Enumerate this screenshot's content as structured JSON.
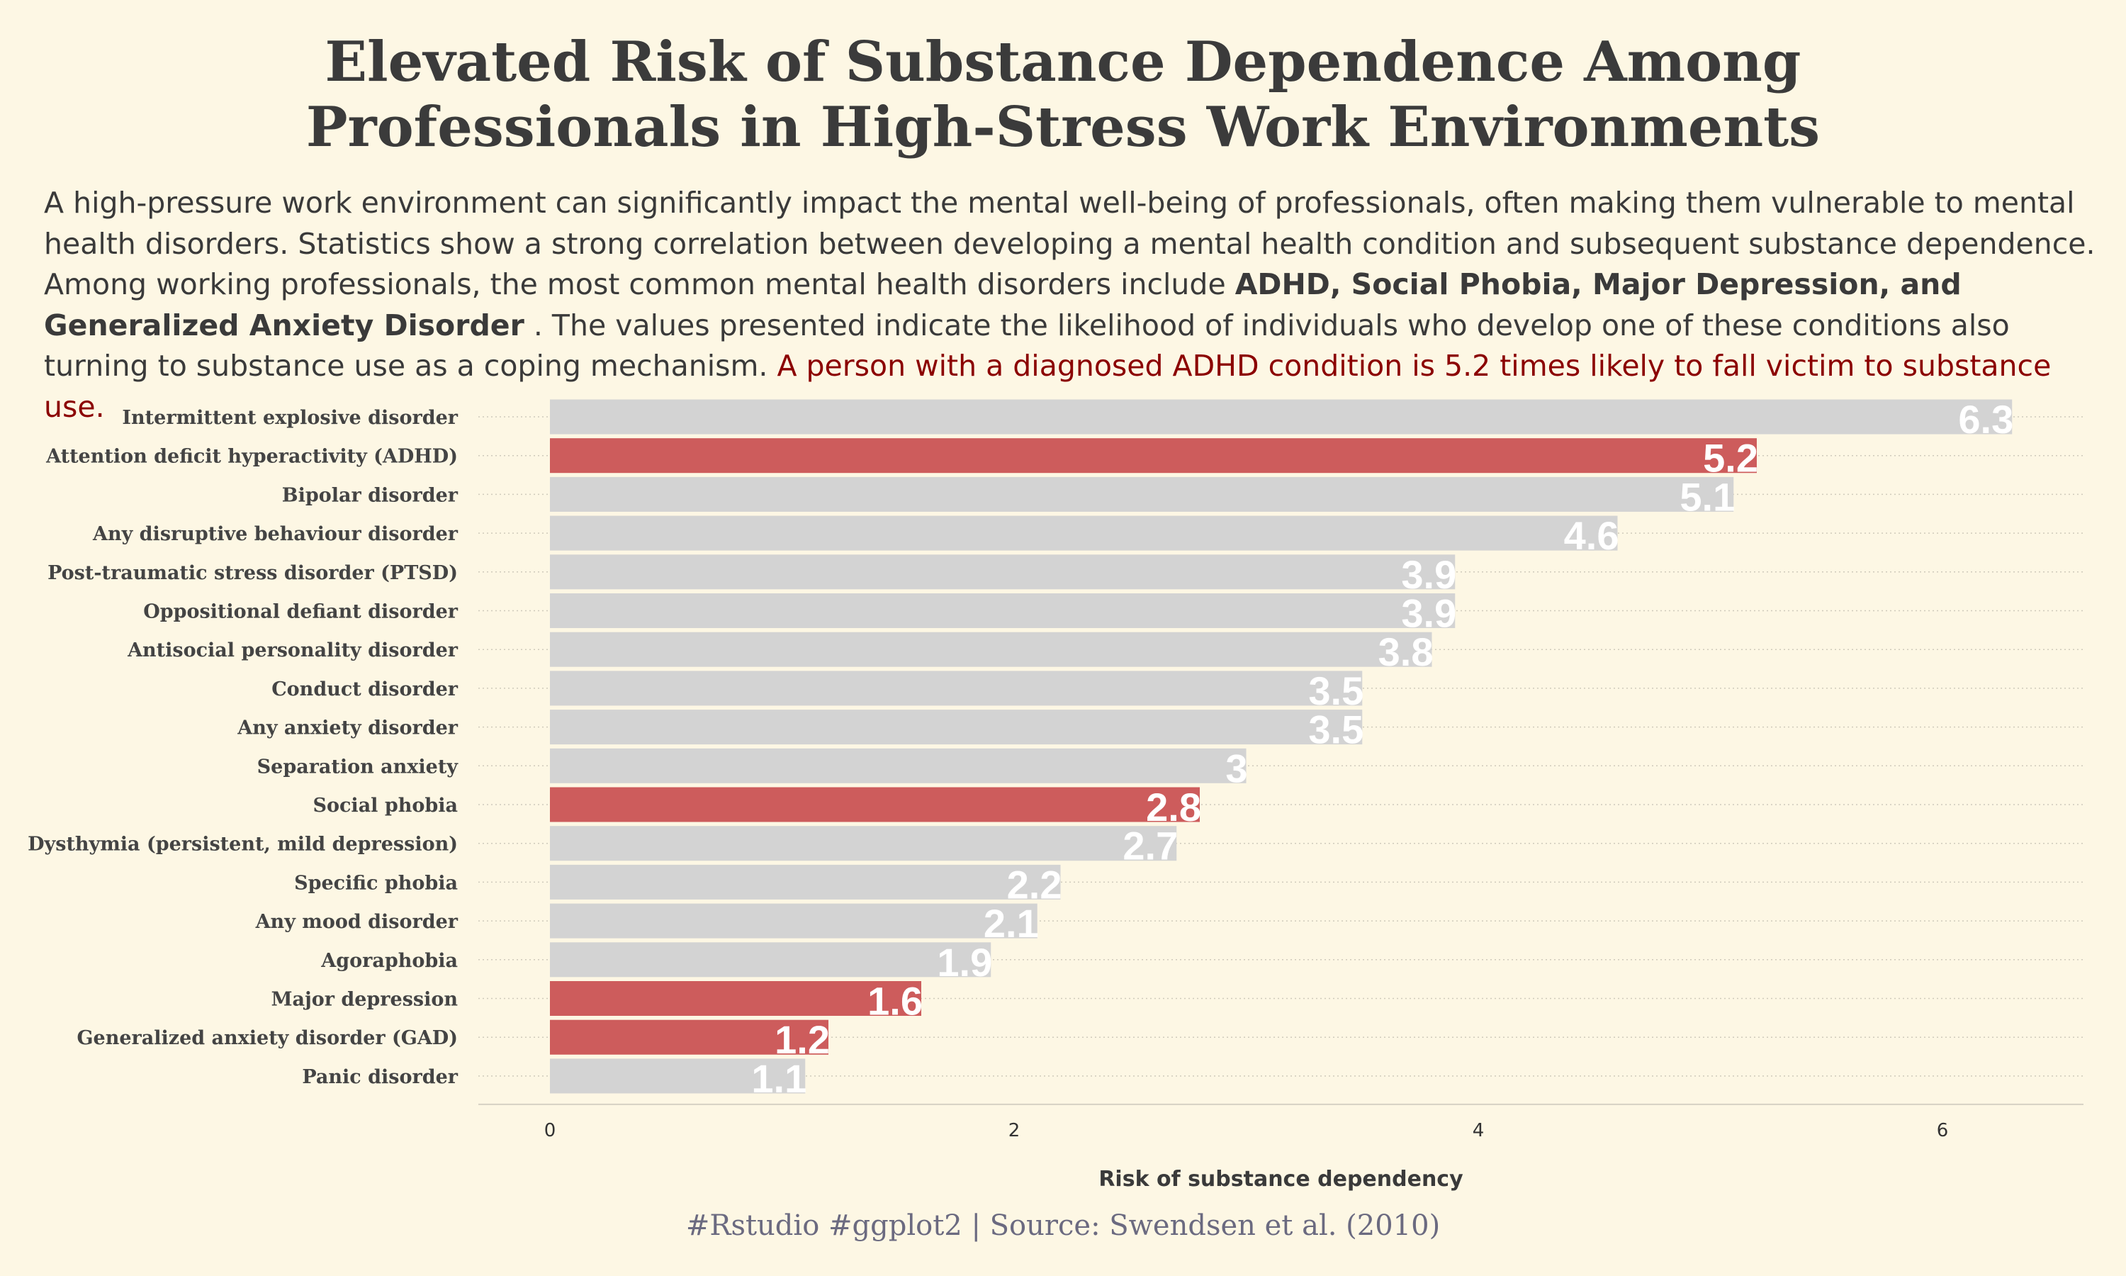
{
  "title_line1": "Elevated Risk of Substance Dependence Among",
  "title_line2": "Professionals in High-Stress Work Environments",
  "subtitle": {
    "part1": "A high-pressure work environment can significantly impact the mental well-being of professionals, often making them vulnerable to mental health disorders. Statistics show a strong correlation between developing a mental health condition and subsequent substance dependence. Among working professionals, the most common mental health disorders include ",
    "bold": "ADHD, Social Phobia, Major Depression, and Generalized Anxiety Disorder",
    "part2": " . The values presented indicate the likelihood of individuals who develop one of these conditions also turning to substance use as a coping mechanism. ",
    "highlight": "A person with a diagnosed ADHD condition is 5.2 times likely to fall victim to substance use."
  },
  "caption": "#Rstudio #ggplot2 | Source: Swendsen et al. (2010)",
  "colors": {
    "background": "#fdf7e4",
    "bar_default": "#d3d3d3",
    "bar_highlight": "#cd5c5c",
    "highlight_text": "#8b0000",
    "value_label": "#ffffff"
  },
  "chart_data": {
    "type": "bar",
    "orientation": "horizontal",
    "xlabel": "Risk of substance dependency",
    "xlim": [
      0,
      6.5
    ],
    "xticks": [
      0,
      2,
      4,
      6
    ],
    "grid": "horizontal-dotted",
    "categories": [
      "Intermittent explosive disorder",
      "Attention deficit hyperactivity (ADHD)",
      "Bipolar disorder",
      "Any disruptive behaviour disorder",
      "Post-traumatic stress disorder (PTSD)",
      "Oppositional defiant disorder",
      "Antisocial personality disorder",
      "Conduct disorder",
      "Any anxiety disorder",
      "Separation anxiety",
      "Social phobia",
      "Dysthymia (persistent, mild depression)",
      "Specific phobia",
      "Any mood disorder",
      "Agoraphobia",
      "Major depression",
      "Generalized anxiety disorder (GAD)",
      "Panic disorder"
    ],
    "values": [
      6.3,
      5.2,
      5.1,
      4.6,
      3.9,
      3.9,
      3.8,
      3.5,
      3.5,
      3,
      2.8,
      2.7,
      2.2,
      2.1,
      1.9,
      1.6,
      1.2,
      1.1
    ],
    "value_labels": [
      "6.3",
      "5.2",
      "5.1",
      "4.6",
      "3.9",
      "3.9",
      "3.8",
      "3.5",
      "3.5",
      "3",
      "2.8",
      "2.7",
      "2.2",
      "2.1",
      "1.9",
      "1.6",
      "1.2",
      "1.1"
    ],
    "highlighted": [
      "Attention deficit hyperactivity (ADHD)",
      "Social phobia",
      "Major depression",
      "Generalized anxiety disorder (GAD)"
    ]
  }
}
